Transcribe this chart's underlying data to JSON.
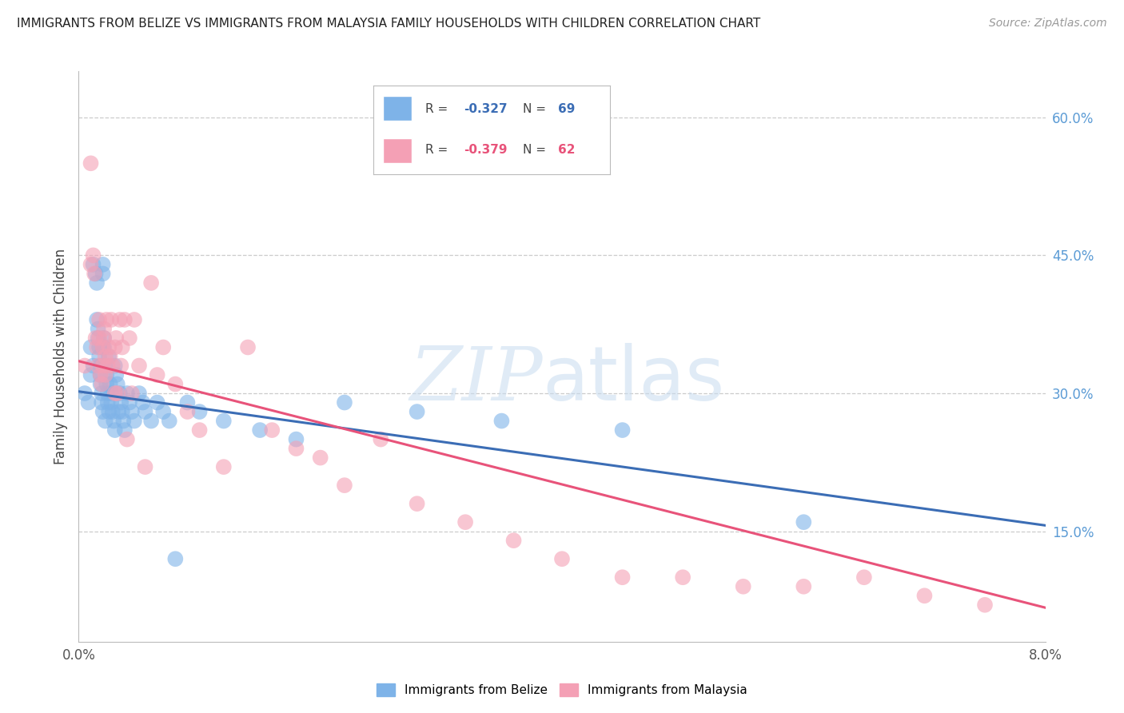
{
  "title": "IMMIGRANTS FROM BELIZE VS IMMIGRANTS FROM MALAYSIA FAMILY HOUSEHOLDS WITH CHILDREN CORRELATION CHART",
  "source": "Source: ZipAtlas.com",
  "ylabel": "Family Households with Children",
  "x_min": 0.0,
  "x_max": 0.08,
  "y_min": 0.03,
  "y_max": 0.65,
  "y_ticks": [
    0.15,
    0.3,
    0.45,
    0.6
  ],
  "y_tick_labels": [
    "15.0%",
    "30.0%",
    "45.0%",
    "60.0%"
  ],
  "x_ticks": [
    0.0,
    0.01,
    0.02,
    0.03,
    0.04,
    0.05,
    0.06,
    0.07,
    0.08
  ],
  "x_tick_labels": [
    "0.0%",
    "",
    "",
    "",
    "",
    "",
    "",
    "",
    "8.0%"
  ],
  "belize_color": "#7EB3E8",
  "malaysia_color": "#F4A0B5",
  "belize_line_color": "#3B6DB5",
  "malaysia_line_color": "#E8537A",
  "legend_belize_R": "-0.327",
  "legend_belize_N": "69",
  "legend_malaysia_R": "-0.379",
  "legend_malaysia_N": "62",
  "belize_x": [
    0.0005,
    0.0008,
    0.001,
    0.001,
    0.0012,
    0.0012,
    0.0014,
    0.0015,
    0.0015,
    0.0016,
    0.0016,
    0.0017,
    0.0017,
    0.0018,
    0.0018,
    0.0018,
    0.0019,
    0.0019,
    0.002,
    0.002,
    0.002,
    0.002,
    0.0021,
    0.0021,
    0.0022,
    0.0022,
    0.0023,
    0.0023,
    0.0024,
    0.0024,
    0.0025,
    0.0025,
    0.0026,
    0.0027,
    0.0027,
    0.0028,
    0.0029,
    0.003,
    0.003,
    0.0031,
    0.0032,
    0.0033,
    0.0034,
    0.0035,
    0.0036,
    0.0037,
    0.0038,
    0.004,
    0.0042,
    0.0044,
    0.0046,
    0.005,
    0.0053,
    0.0055,
    0.006,
    0.0065,
    0.007,
    0.0075,
    0.008,
    0.009,
    0.01,
    0.012,
    0.015,
    0.018,
    0.022,
    0.028,
    0.035,
    0.045,
    0.06
  ],
  "belize_y": [
    0.3,
    0.29,
    0.32,
    0.35,
    0.33,
    0.44,
    0.43,
    0.42,
    0.38,
    0.37,
    0.36,
    0.35,
    0.34,
    0.33,
    0.32,
    0.31,
    0.3,
    0.29,
    0.44,
    0.43,
    0.35,
    0.28,
    0.36,
    0.35,
    0.33,
    0.27,
    0.32,
    0.31,
    0.3,
    0.29,
    0.34,
    0.28,
    0.31,
    0.3,
    0.29,
    0.28,
    0.27,
    0.33,
    0.26,
    0.32,
    0.31,
    0.28,
    0.3,
    0.29,
    0.28,
    0.27,
    0.26,
    0.3,
    0.29,
    0.28,
    0.27,
    0.3,
    0.29,
    0.28,
    0.27,
    0.29,
    0.28,
    0.27,
    0.12,
    0.29,
    0.28,
    0.27,
    0.26,
    0.25,
    0.29,
    0.28,
    0.27,
    0.26,
    0.16
  ],
  "malaysia_x": [
    0.0005,
    0.001,
    0.001,
    0.0012,
    0.0013,
    0.0014,
    0.0015,
    0.0016,
    0.0017,
    0.0017,
    0.0018,
    0.0019,
    0.002,
    0.002,
    0.0021,
    0.0021,
    0.0022,
    0.0022,
    0.0023,
    0.0024,
    0.0025,
    0.0026,
    0.0027,
    0.0028,
    0.003,
    0.003,
    0.0031,
    0.0032,
    0.0034,
    0.0035,
    0.0036,
    0.0038,
    0.004,
    0.0042,
    0.0044,
    0.0046,
    0.005,
    0.0055,
    0.006,
    0.0065,
    0.007,
    0.008,
    0.009,
    0.01,
    0.012,
    0.014,
    0.016,
    0.018,
    0.02,
    0.022,
    0.025,
    0.028,
    0.032,
    0.036,
    0.04,
    0.045,
    0.05,
    0.055,
    0.06,
    0.065,
    0.07,
    0.075
  ],
  "malaysia_y": [
    0.33,
    0.55,
    0.44,
    0.45,
    0.43,
    0.36,
    0.35,
    0.33,
    0.38,
    0.36,
    0.32,
    0.31,
    0.35,
    0.33,
    0.37,
    0.36,
    0.34,
    0.32,
    0.38,
    0.33,
    0.35,
    0.34,
    0.38,
    0.33,
    0.35,
    0.3,
    0.36,
    0.3,
    0.38,
    0.33,
    0.35,
    0.38,
    0.25,
    0.36,
    0.3,
    0.38,
    0.33,
    0.22,
    0.42,
    0.32,
    0.35,
    0.31,
    0.28,
    0.26,
    0.22,
    0.35,
    0.26,
    0.24,
    0.23,
    0.2,
    0.25,
    0.18,
    0.16,
    0.14,
    0.12,
    0.1,
    0.1,
    0.09,
    0.09,
    0.1,
    0.08,
    0.07
  ]
}
